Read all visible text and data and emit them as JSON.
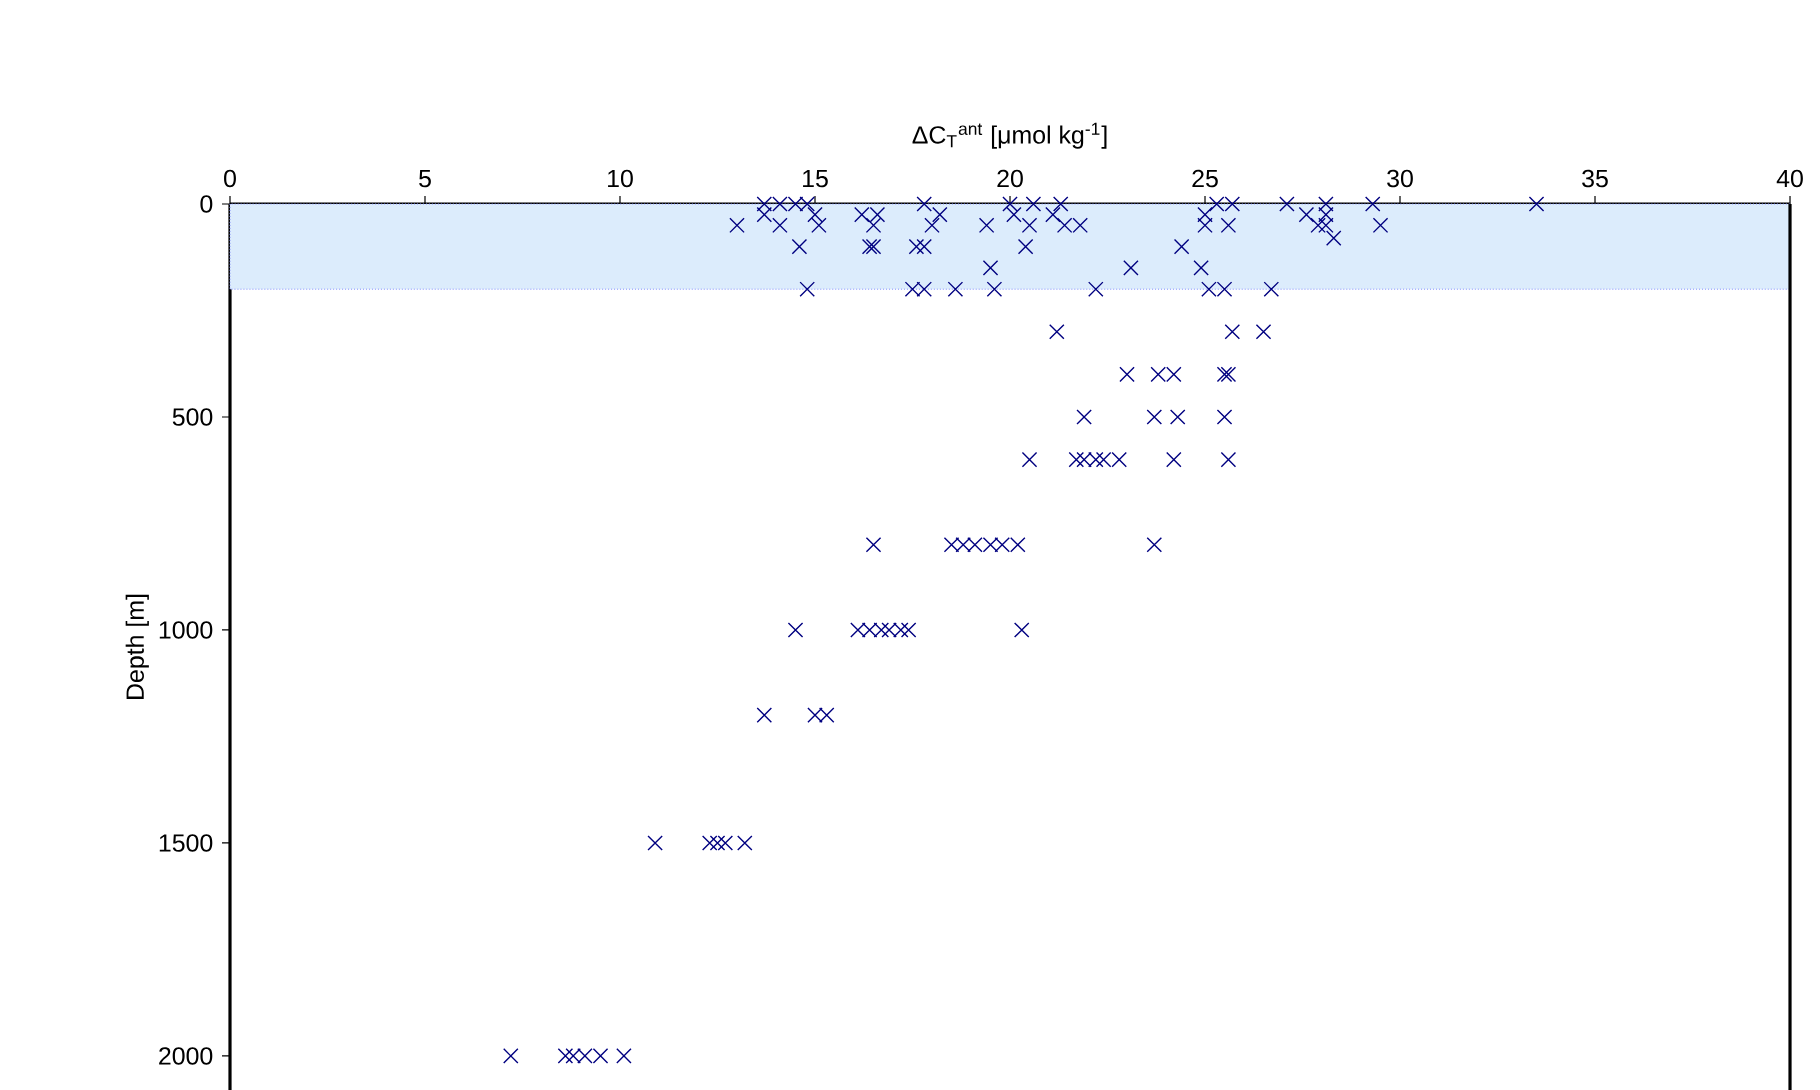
{
  "chart_data": {
    "type": "scatter",
    "xlabel": "ΔC$_{T}$$^{ant}$ [μmol kg$^{-1}$]",
    "ylabel": "Depth [m]",
    "x": [
      7.2,
      8.6,
      8.8,
      9.1,
      9.5,
      10.1,
      10.9,
      12.3,
      12.5,
      12.7,
      13.2,
      13.7,
      15.0,
      15.3,
      14.5,
      16.1,
      16.4,
      16.7,
      16.9,
      17.2,
      17.4,
      20.3,
      16.5,
      18.5,
      18.8,
      19.1,
      19.5,
      19.8,
      20.2,
      23.7,
      20.5,
      21.7,
      21.9,
      22.2,
      22.4,
      22.8,
      24.2,
      25.6,
      21.9,
      23.7,
      24.3,
      25.5,
      23.0,
      23.8,
      24.2,
      25.5,
      25.6,
      21.2,
      25.7,
      26.5,
      14.8,
      17.5,
      17.8,
      18.6,
      19.6,
      22.2,
      25.1,
      25.5,
      26.7,
      19.5,
      23.1,
      24.9,
      14.6,
      16.5,
      17.8,
      20.4,
      16.4,
      17.6,
      24.4,
      28.3,
      13.0,
      14.1,
      15.1,
      16.5,
      18.0,
      19.4,
      20.5,
      21.4,
      21.8,
      25.0,
      25.6,
      28.1,
      29.5,
      27.9,
      13.7,
      15.0,
      16.6,
      18.2,
      20.1,
      21.1,
      16.2,
      25.0,
      27.6,
      28.1,
      13.7,
      14.1,
      14.5,
      14.8,
      17.8,
      20.0,
      20.6,
      21.3,
      25.3,
      25.7,
      27.1,
      28.1,
      29.3,
      33.5
    ],
    "values": [
      2000,
      2000,
      2000,
      2000,
      2000,
      2000,
      1500,
      1500,
      1500,
      1500,
      1500,
      1200,
      1200,
      1200,
      1000,
      1000,
      1000,
      1000,
      1000,
      1000,
      1000,
      1000,
      800,
      800,
      800,
      800,
      800,
      800,
      800,
      800,
      600,
      600,
      600,
      600,
      600,
      600,
      600,
      600,
      500,
      500,
      500,
      500,
      400,
      400,
      400,
      400,
      400,
      300,
      300,
      300,
      200,
      200,
      200,
      200,
      200,
      200,
      200,
      200,
      200,
      150,
      150,
      150,
      100,
      100,
      100,
      100,
      100,
      100,
      100,
      80,
      50,
      50,
      50,
      50,
      50,
      50,
      50,
      50,
      50,
      50,
      50,
      50,
      50,
      50,
      25,
      25,
      25,
      25,
      25,
      25,
      25,
      25,
      25,
      25,
      0,
      0,
      0,
      0,
      0,
      0,
      0,
      0,
      0,
      0,
      0,
      0,
      0,
      0
    ],
    "color": "#000080",
    "marker": "cross",
    "xlim": [
      0,
      40
    ],
    "xticks": [
      0,
      5,
      10,
      15,
      20,
      25,
      30,
      35,
      40
    ],
    "ylim": [
      2080,
      0
    ],
    "yticks": [
      0,
      500,
      1000,
      1500,
      2000
    ],
    "bands": [
      {
        "axis": "y",
        "from": 0,
        "to": 200,
        "color": "#dcecfc"
      }
    ]
  }
}
